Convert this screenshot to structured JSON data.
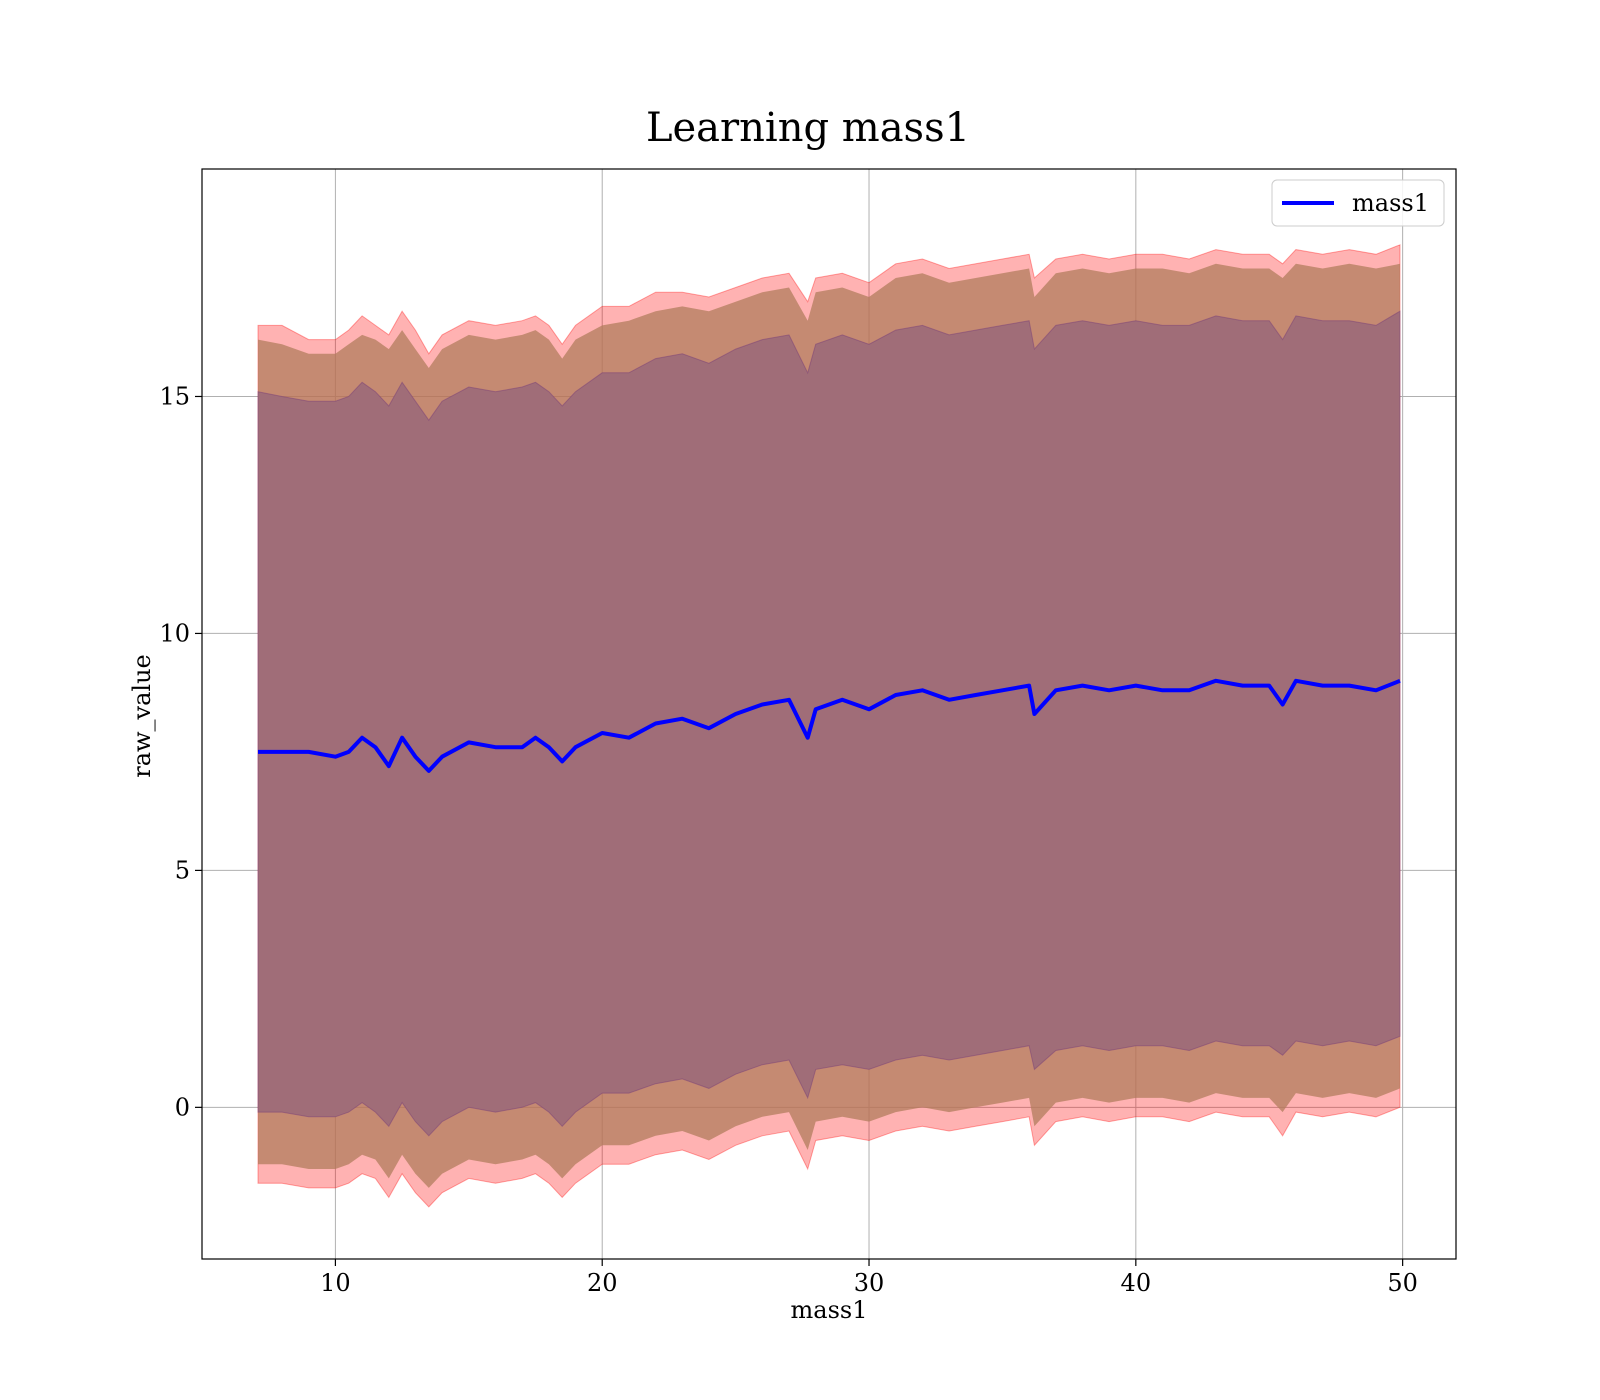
{
  "chart_data": {
    "type": "line",
    "title": "Learning mass1",
    "xlabel": "mass1",
    "ylabel": "raw_value",
    "xlim": [
      5,
      52
    ],
    "ylim": [
      -3.2,
      19.8
    ],
    "xticks": [
      10,
      20,
      30,
      40,
      50
    ],
    "yticks": [
      0,
      5,
      10,
      15
    ],
    "grid": true,
    "legend": {
      "placement": "top-right",
      "entries": [
        "mass1"
      ]
    },
    "colors": {
      "line": "#0000ff",
      "band_outer": "#ff0000",
      "band_middle": "#e0a060",
      "band_inner": "#7a3f78"
    },
    "x": [
      7.1,
      8,
      9,
      10,
      10.5,
      11,
      11.5,
      12,
      12.5,
      13,
      13.5,
      14,
      15,
      16,
      17,
      17.5,
      18,
      18.5,
      19,
      20,
      21,
      22,
      23,
      24,
      25,
      26,
      27,
      27.7,
      28,
      29,
      30,
      31,
      32,
      33,
      34,
      35,
      36,
      36.2,
      37,
      38,
      39,
      40,
      41,
      42,
      43,
      44,
      45,
      45.5,
      46,
      47,
      48,
      49,
      49.9
    ],
    "series": [
      {
        "name": "mass1",
        "values": [
          7.5,
          7.5,
          7.5,
          7.4,
          7.5,
          7.8,
          7.6,
          7.2,
          7.8,
          7.4,
          7.1,
          7.4,
          7.7,
          7.6,
          7.6,
          7.8,
          7.6,
          7.3,
          7.6,
          7.9,
          7.8,
          8.1,
          8.2,
          8.0,
          8.3,
          8.5,
          8.6,
          7.8,
          8.4,
          8.6,
          8.4,
          8.7,
          8.8,
          8.6,
          8.7,
          8.8,
          8.9,
          8.3,
          8.8,
          8.9,
          8.8,
          8.9,
          8.8,
          8.8,
          9.0,
          8.9,
          8.9,
          8.5,
          9.0,
          8.9,
          8.9,
          8.8,
          9.0
        ],
        "upper_outer": [
          16.5,
          16.5,
          16.2,
          16.2,
          16.4,
          16.7,
          16.5,
          16.3,
          16.8,
          16.4,
          15.9,
          16.3,
          16.6,
          16.5,
          16.6,
          16.7,
          16.5,
          16.1,
          16.5,
          16.9,
          16.9,
          17.2,
          17.2,
          17.1,
          17.3,
          17.5,
          17.6,
          17.0,
          17.5,
          17.6,
          17.4,
          17.8,
          17.9,
          17.7,
          17.8,
          17.9,
          18.0,
          17.5,
          17.9,
          18.0,
          17.9,
          18.0,
          18.0,
          17.9,
          18.1,
          18.0,
          18.0,
          17.8,
          18.1,
          18.0,
          18.1,
          18.0,
          18.2
        ],
        "upper_middle": [
          16.2,
          16.1,
          15.9,
          15.9,
          16.1,
          16.3,
          16.2,
          16.0,
          16.4,
          16.0,
          15.6,
          16.0,
          16.3,
          16.2,
          16.3,
          16.4,
          16.2,
          15.8,
          16.2,
          16.5,
          16.6,
          16.8,
          16.9,
          16.8,
          17.0,
          17.2,
          17.3,
          16.6,
          17.2,
          17.3,
          17.1,
          17.5,
          17.6,
          17.4,
          17.5,
          17.6,
          17.7,
          17.1,
          17.6,
          17.7,
          17.6,
          17.7,
          17.7,
          17.6,
          17.8,
          17.7,
          17.7,
          17.5,
          17.8,
          17.7,
          17.8,
          17.7,
          17.8
        ],
        "upper_inner": [
          15.1,
          15.0,
          14.9,
          14.9,
          15.0,
          15.3,
          15.1,
          14.8,
          15.3,
          14.9,
          14.5,
          14.9,
          15.2,
          15.1,
          15.2,
          15.3,
          15.1,
          14.8,
          15.1,
          15.5,
          15.5,
          15.8,
          15.9,
          15.7,
          16.0,
          16.2,
          16.3,
          15.5,
          16.1,
          16.3,
          16.1,
          16.4,
          16.5,
          16.3,
          16.4,
          16.5,
          16.6,
          16.0,
          16.5,
          16.6,
          16.5,
          16.6,
          16.5,
          16.5,
          16.7,
          16.6,
          16.6,
          16.2,
          16.7,
          16.6,
          16.6,
          16.5,
          16.8
        ],
        "lower_inner": [
          -0.1,
          -0.1,
          -0.2,
          -0.2,
          -0.1,
          0.1,
          -0.1,
          -0.4,
          0.1,
          -0.3,
          -0.6,
          -0.3,
          0.0,
          -0.1,
          0.0,
          0.1,
          -0.1,
          -0.4,
          -0.1,
          0.3,
          0.3,
          0.5,
          0.6,
          0.4,
          0.7,
          0.9,
          1.0,
          0.2,
          0.8,
          0.9,
          0.8,
          1.0,
          1.1,
          1.0,
          1.1,
          1.2,
          1.3,
          0.8,
          1.2,
          1.3,
          1.2,
          1.3,
          1.3,
          1.2,
          1.4,
          1.3,
          1.3,
          1.1,
          1.4,
          1.3,
          1.4,
          1.3,
          1.5
        ],
        "lower_middle": [
          -1.2,
          -1.2,
          -1.3,
          -1.3,
          -1.2,
          -1.0,
          -1.1,
          -1.5,
          -1.0,
          -1.4,
          -1.7,
          -1.4,
          -1.1,
          -1.2,
          -1.1,
          -1.0,
          -1.2,
          -1.5,
          -1.2,
          -0.8,
          -0.8,
          -0.6,
          -0.5,
          -0.7,
          -0.4,
          -0.2,
          -0.1,
          -0.9,
          -0.3,
          -0.2,
          -0.3,
          -0.1,
          0.0,
          -0.1,
          0.0,
          0.1,
          0.2,
          -0.4,
          0.1,
          0.2,
          0.1,
          0.2,
          0.2,
          0.1,
          0.3,
          0.2,
          0.2,
          -0.1,
          0.3,
          0.2,
          0.3,
          0.2,
          0.4
        ],
        "lower_outer": [
          -1.6,
          -1.6,
          -1.7,
          -1.7,
          -1.6,
          -1.4,
          -1.5,
          -1.9,
          -1.4,
          -1.8,
          -2.1,
          -1.8,
          -1.5,
          -1.6,
          -1.5,
          -1.4,
          -1.6,
          -1.9,
          -1.6,
          -1.2,
          -1.2,
          -1.0,
          -0.9,
          -1.1,
          -0.8,
          -0.6,
          -0.5,
          -1.3,
          -0.7,
          -0.6,
          -0.7,
          -0.5,
          -0.4,
          -0.5,
          -0.4,
          -0.3,
          -0.2,
          -0.8,
          -0.3,
          -0.2,
          -0.3,
          -0.2,
          -0.2,
          -0.3,
          -0.1,
          -0.2,
          -0.2,
          -0.6,
          -0.1,
          -0.2,
          -0.1,
          -0.2,
          0.0
        ]
      }
    ]
  }
}
